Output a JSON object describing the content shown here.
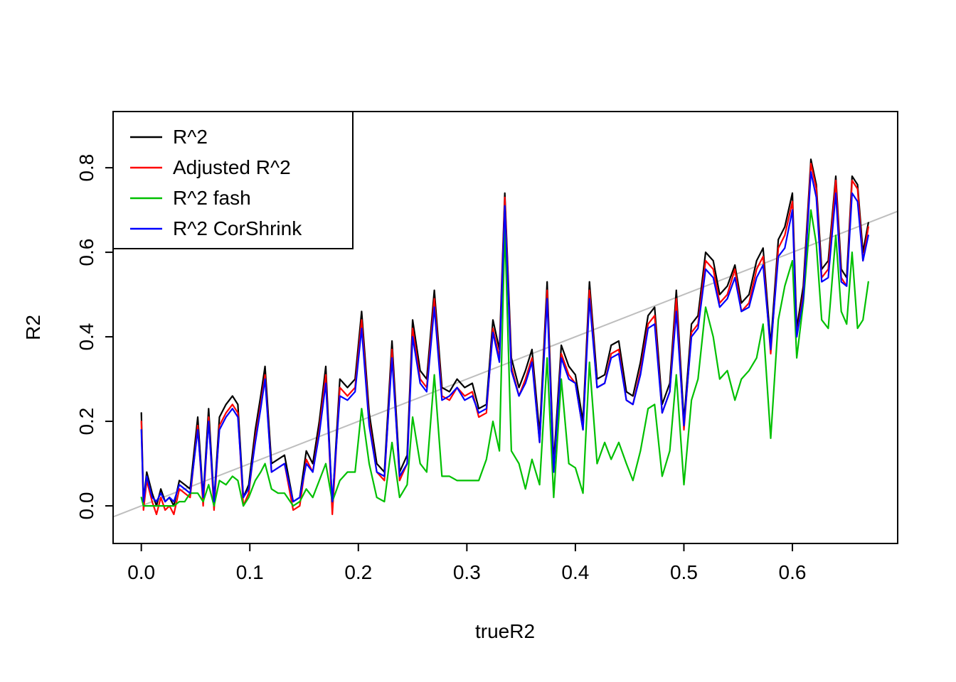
{
  "figure": {
    "background": "#ffffff"
  },
  "chart_data": {
    "type": "line",
    "title": "",
    "xlabel": "trueR2",
    "ylabel": "R2",
    "xlim": [
      -0.026,
      0.697
    ],
    "ylim": [
      -0.089,
      0.933
    ],
    "xtick_labels": [
      "0.0",
      "0.1",
      "0.2",
      "0.3",
      "0.4",
      "0.5",
      "0.6"
    ],
    "xtick_values": [
      0.0,
      0.1,
      0.2,
      0.3,
      0.4,
      0.5,
      0.6
    ],
    "ytick_labels": [
      "0.0",
      "0.2",
      "0.4",
      "0.6",
      "0.8"
    ],
    "ytick_values": [
      0.0,
      0.2,
      0.4,
      0.6,
      0.8
    ],
    "grid": false,
    "legend_position": "top-left",
    "reference_line": {
      "slope": 1,
      "intercept": 0,
      "color": "#bebebe"
    },
    "x": [
      0.0,
      0.002,
      0.005,
      0.01,
      0.014,
      0.018,
      0.022,
      0.026,
      0.03,
      0.035,
      0.04,
      0.045,
      0.052,
      0.057,
      0.062,
      0.067,
      0.072,
      0.078,
      0.084,
      0.089,
      0.094,
      0.099,
      0.105,
      0.11,
      0.114,
      0.12,
      0.126,
      0.132,
      0.14,
      0.146,
      0.152,
      0.158,
      0.164,
      0.17,
      0.176,
      0.183,
      0.19,
      0.197,
      0.203,
      0.21,
      0.217,
      0.224,
      0.231,
      0.238,
      0.245,
      0.25,
      0.257,
      0.263,
      0.27,
      0.277,
      0.284,
      0.291,
      0.298,
      0.305,
      0.311,
      0.318,
      0.324,
      0.33,
      0.335,
      0.341,
      0.348,
      0.354,
      0.36,
      0.367,
      0.374,
      0.38,
      0.387,
      0.394,
      0.4,
      0.407,
      0.413,
      0.42,
      0.427,
      0.433,
      0.44,
      0.447,
      0.453,
      0.46,
      0.467,
      0.473,
      0.48,
      0.487,
      0.493,
      0.5,
      0.507,
      0.513,
      0.52,
      0.527,
      0.533,
      0.54,
      0.547,
      0.553,
      0.56,
      0.567,
      0.573,
      0.58,
      0.587,
      0.593,
      0.6,
      0.604,
      0.61,
      0.617,
      0.622,
      0.627,
      0.633,
      0.64,
      0.645,
      0.65,
      0.655,
      0.66,
      0.665,
      0.67
    ],
    "series": [
      {
        "name": "R^2",
        "color": "#000000",
        "values": [
          0.22,
          0.01,
          0.08,
          0.03,
          0.0,
          0.04,
          0.01,
          0.02,
          0.0,
          0.06,
          0.05,
          0.04,
          0.21,
          0.02,
          0.23,
          0.01,
          0.21,
          0.24,
          0.26,
          0.24,
          0.02,
          0.05,
          0.18,
          0.26,
          0.33,
          0.1,
          0.11,
          0.12,
          0.01,
          0.02,
          0.13,
          0.1,
          0.2,
          0.33,
          0.0,
          0.3,
          0.28,
          0.3,
          0.46,
          0.22,
          0.1,
          0.08,
          0.39,
          0.08,
          0.12,
          0.44,
          0.32,
          0.3,
          0.51,
          0.28,
          0.27,
          0.3,
          0.28,
          0.29,
          0.23,
          0.24,
          0.44,
          0.37,
          0.74,
          0.35,
          0.28,
          0.32,
          0.37,
          0.17,
          0.53,
          0.1,
          0.38,
          0.33,
          0.31,
          0.2,
          0.53,
          0.3,
          0.31,
          0.38,
          0.39,
          0.27,
          0.26,
          0.34,
          0.45,
          0.47,
          0.24,
          0.29,
          0.51,
          0.2,
          0.43,
          0.45,
          0.6,
          0.58,
          0.5,
          0.52,
          0.57,
          0.48,
          0.5,
          0.58,
          0.61,
          0.38,
          0.63,
          0.66,
          0.74,
          0.42,
          0.52,
          0.82,
          0.76,
          0.56,
          0.58,
          0.78,
          0.56,
          0.54,
          0.78,
          0.76,
          0.6,
          0.67
        ]
      },
      {
        "name": "Adjusted R^2",
        "color": "#ff0000",
        "values": [
          0.2,
          -0.01,
          0.06,
          0.01,
          -0.02,
          0.02,
          -0.01,
          0.0,
          -0.02,
          0.04,
          0.03,
          0.02,
          0.19,
          0.0,
          0.21,
          -0.01,
          0.19,
          0.22,
          0.24,
          0.22,
          0.0,
          0.03,
          0.16,
          0.24,
          0.31,
          0.08,
          0.09,
          0.1,
          -0.01,
          0.0,
          0.11,
          0.08,
          0.18,
          0.31,
          -0.02,
          0.28,
          0.26,
          0.28,
          0.44,
          0.2,
          0.08,
          0.06,
          0.37,
          0.06,
          0.1,
          0.42,
          0.3,
          0.28,
          0.49,
          0.26,
          0.25,
          0.28,
          0.26,
          0.27,
          0.21,
          0.22,
          0.42,
          0.35,
          0.73,
          0.33,
          0.26,
          0.3,
          0.35,
          0.15,
          0.51,
          0.08,
          0.36,
          0.31,
          0.29,
          0.18,
          0.51,
          0.28,
          0.29,
          0.36,
          0.37,
          0.25,
          0.24,
          0.32,
          0.43,
          0.45,
          0.22,
          0.27,
          0.49,
          0.18,
          0.41,
          0.43,
          0.58,
          0.56,
          0.48,
          0.5,
          0.56,
          0.46,
          0.48,
          0.56,
          0.59,
          0.36,
          0.61,
          0.64,
          0.72,
          0.4,
          0.5,
          0.81,
          0.75,
          0.54,
          0.56,
          0.77,
          0.54,
          0.52,
          0.77,
          0.75,
          0.58,
          0.66
        ]
      },
      {
        "name": "R^2 fash",
        "color": "#00c000",
        "values": [
          0.02,
          0.0,
          0.0,
          0.0,
          0.0,
          0.0,
          0.0,
          0.0,
          0.0,
          0.01,
          0.01,
          0.03,
          0.03,
          0.01,
          0.05,
          0.0,
          0.06,
          0.05,
          0.07,
          0.06,
          0.0,
          0.02,
          0.06,
          0.08,
          0.1,
          0.04,
          0.03,
          0.03,
          0.0,
          0.01,
          0.04,
          0.02,
          0.06,
          0.1,
          0.01,
          0.06,
          0.08,
          0.08,
          0.23,
          0.1,
          0.02,
          0.01,
          0.15,
          0.02,
          0.05,
          0.21,
          0.1,
          0.08,
          0.31,
          0.07,
          0.07,
          0.06,
          0.06,
          0.06,
          0.06,
          0.11,
          0.2,
          0.13,
          0.66,
          0.13,
          0.1,
          0.04,
          0.11,
          0.05,
          0.35,
          0.02,
          0.3,
          0.1,
          0.09,
          0.03,
          0.34,
          0.1,
          0.15,
          0.11,
          0.15,
          0.1,
          0.06,
          0.13,
          0.23,
          0.24,
          0.07,
          0.13,
          0.31,
          0.05,
          0.25,
          0.3,
          0.47,
          0.4,
          0.3,
          0.32,
          0.25,
          0.3,
          0.32,
          0.35,
          0.43,
          0.16,
          0.44,
          0.52,
          0.58,
          0.35,
          0.48,
          0.7,
          0.62,
          0.44,
          0.42,
          0.64,
          0.46,
          0.43,
          0.6,
          0.42,
          0.44,
          0.53
        ]
      },
      {
        "name": "R^2 CorShrink",
        "color": "#0000ff",
        "values": [
          0.18,
          0.01,
          0.07,
          0.02,
          0.01,
          0.03,
          0.01,
          0.02,
          0.01,
          0.05,
          0.04,
          0.03,
          0.18,
          0.02,
          0.2,
          0.01,
          0.18,
          0.21,
          0.23,
          0.21,
          0.02,
          0.04,
          0.15,
          0.23,
          0.3,
          0.08,
          0.09,
          0.1,
          0.01,
          0.02,
          0.1,
          0.08,
          0.17,
          0.29,
          0.01,
          0.26,
          0.25,
          0.27,
          0.42,
          0.19,
          0.08,
          0.07,
          0.35,
          0.07,
          0.1,
          0.4,
          0.29,
          0.27,
          0.47,
          0.25,
          0.26,
          0.28,
          0.25,
          0.26,
          0.22,
          0.23,
          0.41,
          0.34,
          0.71,
          0.32,
          0.26,
          0.29,
          0.34,
          0.15,
          0.49,
          0.08,
          0.35,
          0.3,
          0.29,
          0.18,
          0.49,
          0.28,
          0.29,
          0.35,
          0.36,
          0.25,
          0.24,
          0.31,
          0.42,
          0.43,
          0.22,
          0.27,
          0.46,
          0.19,
          0.4,
          0.42,
          0.56,
          0.54,
          0.47,
          0.49,
          0.54,
          0.46,
          0.47,
          0.54,
          0.57,
          0.37,
          0.59,
          0.61,
          0.7,
          0.4,
          0.49,
          0.79,
          0.73,
          0.53,
          0.54,
          0.74,
          0.53,
          0.52,
          0.74,
          0.72,
          0.58,
          0.64
        ]
      }
    ]
  }
}
